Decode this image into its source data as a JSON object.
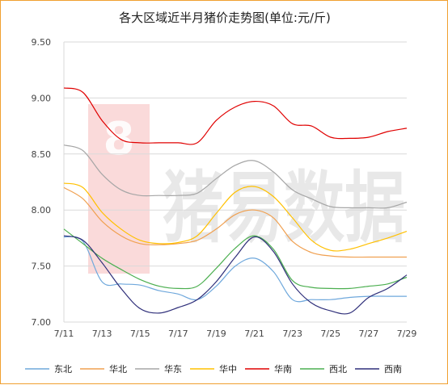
{
  "chart_data": {
    "type": "line",
    "title": "各大区域近半月猪价走势图(单位:元/斤)",
    "xlabel": "",
    "ylabel": "",
    "x": [
      "7/11",
      "7/12",
      "7/13",
      "7/14",
      "7/15",
      "7/16",
      "7/17",
      "7/18",
      "7/19",
      "7/20",
      "7/21",
      "7/22",
      "7/23",
      "7/24",
      "7/25",
      "7/26",
      "7/27",
      "7/28",
      "7/29"
    ],
    "xtick_labels": [
      "7/11",
      "7/13",
      "7/15",
      "7/17",
      "7/19",
      "7/21",
      "7/23",
      "7/25",
      "7/27",
      "7/29"
    ],
    "ylim": [
      7.0,
      9.5
    ],
    "yticks": [
      "7.00",
      "7.50",
      "8.00",
      "8.50",
      "9.00",
      "9.50"
    ],
    "grid": "horizontal",
    "legend_position": "bottom",
    "series": [
      {
        "name": "东北",
        "color": "#6fa8dc",
        "values": [
          7.76,
          7.72,
          7.36,
          7.34,
          7.33,
          7.28,
          7.25,
          7.2,
          7.32,
          7.5,
          7.57,
          7.45,
          7.2,
          7.2,
          7.2,
          7.22,
          7.23,
          7.23,
          7.23
        ]
      },
      {
        "name": "华北",
        "color": "#f0a050",
        "values": [
          8.2,
          8.1,
          7.9,
          7.77,
          7.7,
          7.69,
          7.7,
          7.73,
          7.83,
          7.96,
          8.0,
          7.93,
          7.72,
          7.62,
          7.59,
          7.58,
          7.58,
          7.58,
          7.58
        ]
      },
      {
        "name": "华东",
        "color": "#a6a6a6",
        "values": [
          8.58,
          8.53,
          8.32,
          8.18,
          8.13,
          8.13,
          8.13,
          8.15,
          8.28,
          8.4,
          8.44,
          8.34,
          8.18,
          8.1,
          8.03,
          8.02,
          8.02,
          8.02,
          8.07
        ]
      },
      {
        "name": "华中",
        "color": "#ffc000",
        "values": [
          8.24,
          8.2,
          7.98,
          7.83,
          7.73,
          7.7,
          7.71,
          7.77,
          7.97,
          8.16,
          8.21,
          8.12,
          7.93,
          7.73,
          7.64,
          7.65,
          7.7,
          7.75,
          7.81
        ]
      },
      {
        "name": "华南",
        "color": "#e00000",
        "values": [
          9.09,
          9.05,
          8.8,
          8.63,
          8.6,
          8.6,
          8.6,
          8.6,
          8.8,
          8.92,
          8.97,
          8.93,
          8.77,
          8.75,
          8.65,
          8.64,
          8.65,
          8.7,
          8.73
        ]
      },
      {
        "name": "西北",
        "color": "#4caf50",
        "values": [
          7.83,
          7.7,
          7.57,
          7.47,
          7.38,
          7.32,
          7.3,
          7.32,
          7.48,
          7.66,
          7.77,
          7.65,
          7.37,
          7.31,
          7.3,
          7.3,
          7.32,
          7.34,
          7.4
        ]
      },
      {
        "name": "西南",
        "color": "#2f2f7a",
        "values": [
          7.77,
          7.73,
          7.53,
          7.3,
          7.12,
          7.08,
          7.13,
          7.2,
          7.36,
          7.58,
          7.76,
          7.63,
          7.34,
          7.17,
          7.1,
          7.08,
          7.22,
          7.3,
          7.42
        ]
      }
    ]
  },
  "watermark": {
    "text": "猪易数据",
    "logo_letter": "8",
    "logo_color": "#e63030"
  }
}
